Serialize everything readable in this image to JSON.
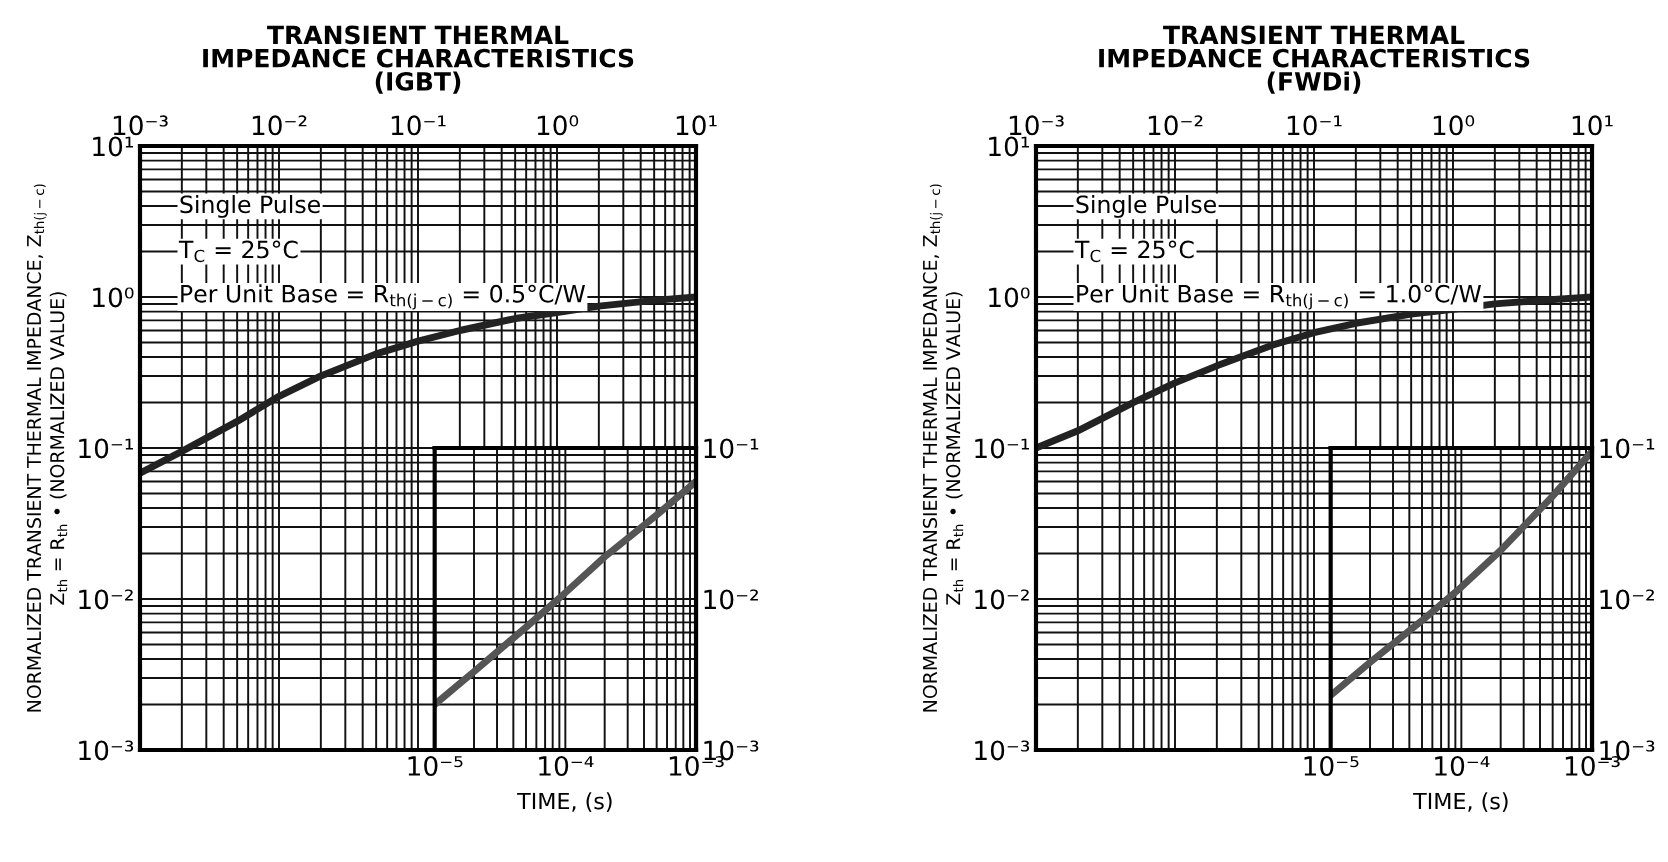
{
  "chart_data": [
    {
      "type": "line",
      "title": "TRANSIENT THERMAL\nIMPEDANCE CHARACTERISTICS\n(IGBT)",
      "ylabel": "NORMALIZED TRANSIENT THERMAL IMPEDANCE, Z$_{th(j−c)}$\nZ$_{th}$ = R$_{th}$ • (NORMALIZED VALUE)",
      "log": "xy",
      "grid": true,
      "x": [
        0.001,
        0.002,
        0.005,
        0.01,
        0.02,
        0.05,
        0.1,
        0.2,
        0.5,
        1,
        2,
        5,
        10
      ],
      "series": [
        {
          "color": "#222222",
          "values": [
            0.068,
            0.095,
            0.15,
            0.22,
            0.3,
            0.42,
            0.51,
            0.6,
            0.72,
            0.79,
            0.87,
            0.95,
            1.0
          ]
        }
      ],
      "xlim": [
        0.001,
        10
      ],
      "ylim": [
        0.001,
        10
      ],
      "xticks": [
        {
          "value": 0.001,
          "label": "10⁻³"
        },
        {
          "value": 0.01,
          "label": "10⁻²"
        },
        {
          "value": 0.1,
          "label": "10⁻¹"
        },
        {
          "value": 1,
          "label": "10⁰"
        },
        {
          "value": 10,
          "label": "10¹"
        }
      ],
      "yticks": [
        {
          "value": 0.001,
          "label": "10⁻³"
        },
        {
          "value": 0.01,
          "label": "10⁻²"
        },
        {
          "value": 0.1,
          "label": "10⁻¹"
        },
        {
          "value": 1,
          "label": "10⁰"
        },
        {
          "value": 10,
          "label": "10¹"
        }
      ],
      "annotations": [
        "Single Pulse",
        "T$_{C}$ = 25°C",
        "Per Unit Base = R$_{th(j−c)}$ = 0.5°C/W"
      ]
    },
    {
      "type": "line",
      "xlabel": "TIME, (s)",
      "log": "xy",
      "grid": true,
      "x": [
        1e-05,
        2e-05,
        5e-05,
        0.0001,
        0.0002,
        0.0005,
        0.001
      ],
      "series": [
        {
          "color": "#555555",
          "values": [
            0.002,
            0.0033,
            0.0065,
            0.011,
            0.019,
            0.036,
            0.06
          ]
        }
      ],
      "xlim": [
        1e-05,
        0.001
      ],
      "ylim": [
        0.001,
        0.1
      ],
      "xticks": [
        {
          "value": 1e-05,
          "label": "10⁻⁵"
        },
        {
          "value": 0.0001,
          "label": "10⁻⁴"
        },
        {
          "value": 0.001,
          "label": "10⁻³"
        }
      ],
      "yticks": [
        {
          "value": 0.001,
          "label": "10⁻³"
        },
        {
          "value": 0.01,
          "label": "10⁻²"
        },
        {
          "value": 0.1,
          "label": "10⁻¹"
        }
      ]
    },
    {
      "type": "line",
      "title": "TRANSIENT THERMAL\nIMPEDANCE CHARACTERISTICS\n(FWDi)",
      "ylabel": "NORMALIZED TRANSIENT THERMAL IMPEDANCE, Z$_{th(j−c)}$\nZ$_{th}$ = R$_{th}$ • (NORMALIZED VALUE)",
      "log": "xy",
      "grid": true,
      "x": [
        0.001,
        0.002,
        0.005,
        0.01,
        0.02,
        0.05,
        0.1,
        0.2,
        0.5,
        1,
        2,
        5,
        10
      ],
      "series": [
        {
          "color": "#222222",
          "values": [
            0.1,
            0.13,
            0.2,
            0.27,
            0.35,
            0.48,
            0.58,
            0.67,
            0.77,
            0.83,
            0.9,
            0.96,
            1.0
          ]
        }
      ],
      "xlim": [
        0.001,
        10
      ],
      "ylim": [
        0.001,
        10
      ],
      "xticks": [
        {
          "value": 0.001,
          "label": "10⁻³"
        },
        {
          "value": 0.01,
          "label": "10⁻²"
        },
        {
          "value": 0.1,
          "label": "10⁻¹"
        },
        {
          "value": 1,
          "label": "10⁰"
        },
        {
          "value": 10,
          "label": "10¹"
        }
      ],
      "yticks": [
        {
          "value": 0.001,
          "label": "10⁻³"
        },
        {
          "value": 0.01,
          "label": "10⁻²"
        },
        {
          "value": 0.1,
          "label": "10⁻¹"
        },
        {
          "value": 1,
          "label": "10⁰"
        },
        {
          "value": 10,
          "label": "10¹"
        }
      ],
      "annotations": [
        "Single Pulse",
        "T$_{C}$ = 25°C",
        "Per Unit Base = R$_{th(j−c)}$ = 1.0°C/W"
      ]
    },
    {
      "type": "line",
      "xlabel": "TIME, (s)",
      "log": "xy",
      "grid": true,
      "x": [
        1e-05,
        2e-05,
        5e-05,
        0.0001,
        0.0002,
        0.0005,
        0.001
      ],
      "series": [
        {
          "color": "#555555",
          "values": [
            0.0023,
            0.0038,
            0.0072,
            0.012,
            0.021,
            0.048,
            0.095
          ]
        }
      ],
      "xlim": [
        1e-05,
        0.001
      ],
      "ylim": [
        0.001,
        0.1
      ],
      "xticks": [
        {
          "value": 1e-05,
          "label": "10⁻⁵"
        },
        {
          "value": 0.0001,
          "label": "10⁻⁴"
        },
        {
          "value": 0.001,
          "label": "10⁻³"
        }
      ],
      "yticks": [
        {
          "value": 0.001,
          "label": "10⁻³"
        },
        {
          "value": 0.01,
          "label": "10⁻²"
        },
        {
          "value": 0.1,
          "label": "10⁻¹"
        }
      ]
    }
  ]
}
